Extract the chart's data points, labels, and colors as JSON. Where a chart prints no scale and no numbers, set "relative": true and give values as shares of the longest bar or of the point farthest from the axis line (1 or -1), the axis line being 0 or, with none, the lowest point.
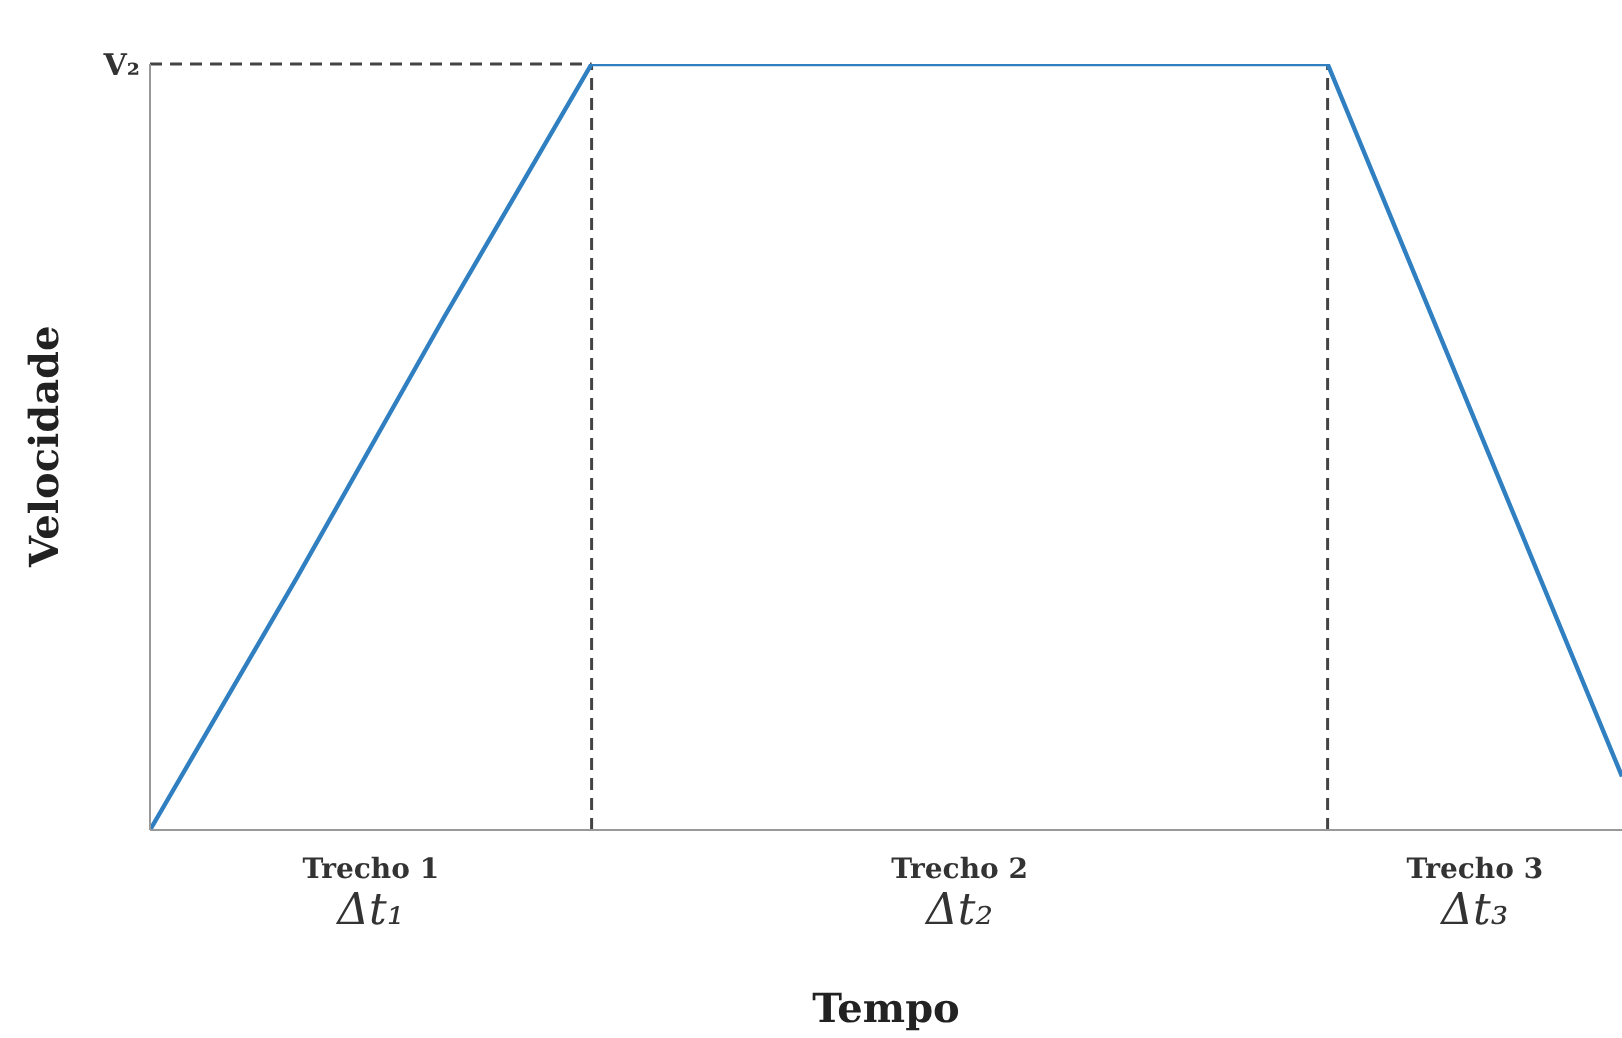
{
  "chart_data": {
    "type": "line",
    "relative": true,
    "xlabel": "Tempo",
    "ylabel": "Velocidade",
    "categories": [
      null,
      null,
      null,
      null,
      null,
      null,
      null,
      null,
      null,
      null,
      null
    ],
    "marker": "none",
    "line_style": "solid",
    "series": [
      {
        "color": "#2f7fc1",
        "values": [
          0,
          0.33,
          0.67,
          1,
          1,
          1,
          1,
          1,
          1,
          0.535,
          0.07
        ]
      }
    ],
    "ref_lines": [
      {
        "axis": "y",
        "value": 1,
        "label": "V₂",
        "line_style": "dashed",
        "color": "#444444"
      }
    ],
    "annotations": [
      "Trecho 1",
      "Δt₁",
      "Trecho 2",
      "Δt₂",
      "Trecho 3",
      "Δt₃"
    ]
  }
}
